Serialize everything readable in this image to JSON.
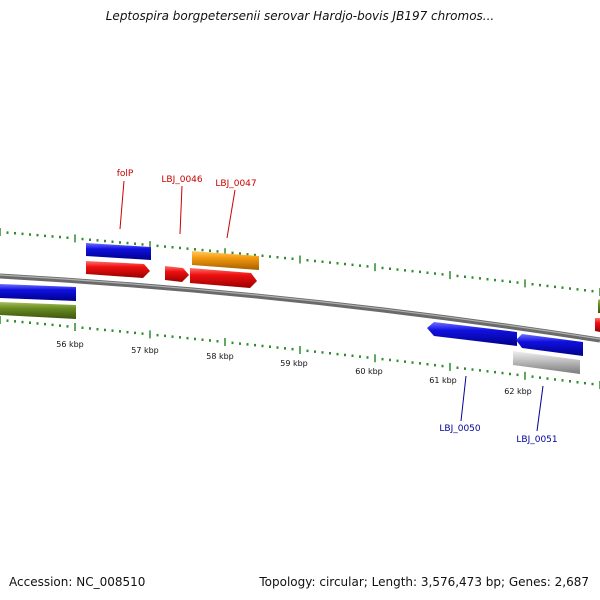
{
  "title": "Leptospira borgpetersenii serovar Hardjo-bovis JB197 chromos...",
  "footer": {
    "accession": "Accession: NC_008510",
    "summary": "Topology: circular; Length: 3,576,473 bp; Genes: 2,687"
  },
  "scale_labels": [
    "56 kbp",
    "57 kbp",
    "58 kbp",
    "59 kbp",
    "60 kbp",
    "61 kbp",
    "62 kbp"
  ],
  "gene_labels": {
    "folP": "folP",
    "LBJ_0046": "LBJ_0046",
    "LBJ_0047": "LBJ_0047",
    "LBJ_0050": "LBJ_0050",
    "LBJ_0051": "LBJ_0051"
  },
  "colors": {
    "backbone": "#7a7a7a",
    "tick": "#2e8b2e",
    "label_red": "#cc0000",
    "label_blue": "#000099",
    "gene_blue": "#1010e0",
    "gene_red": "#ee1010",
    "gene_orange": "#f59b10",
    "gene_green": "#6b8e23",
    "gene_gray": "#c8c8c8"
  }
}
